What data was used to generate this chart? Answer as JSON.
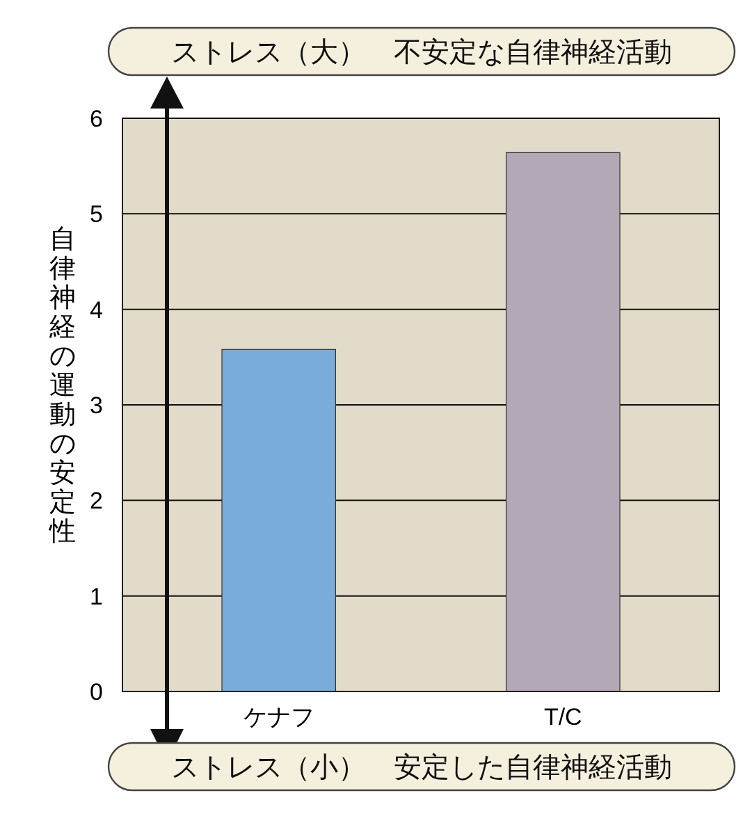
{
  "chart_data": {
    "type": "bar",
    "title": "ストレス（大）　不安定な自律神経活動",
    "ylabel": "自律神経の運動の安定性",
    "annotations": [
      "ストレス（小）　安定した自律神経活動"
    ],
    "categories": [
      "ケナフ",
      "T/C"
    ],
    "values": [
      3.58,
      5.64
    ],
    "colors": [
      "#7aacdc",
      "#b3a8b6"
    ],
    "ylim": [
      0,
      6
    ],
    "yticks": [
      0,
      1,
      2,
      3,
      4,
      5,
      6
    ],
    "grid": "y"
  }
}
